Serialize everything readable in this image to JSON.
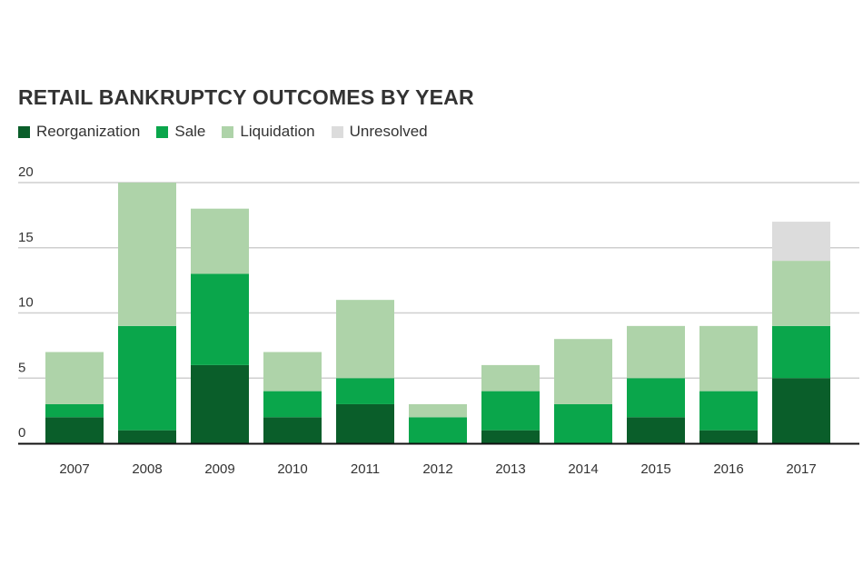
{
  "chart_data": {
    "type": "bar",
    "stacked": true,
    "title": "RETAIL BANKRUPTCY OUTCOMES BY YEAR",
    "categories": [
      "2007",
      "2008",
      "2009",
      "2010",
      "2011",
      "2012",
      "2013",
      "2014",
      "2015",
      "2016",
      "2017"
    ],
    "series": [
      {
        "name": "Reorganization",
        "color": "#0a5e2a",
        "values": [
          2,
          1,
          6,
          2,
          3,
          0,
          1,
          0,
          2,
          1,
          5
        ]
      },
      {
        "name": "Sale",
        "color": "#0aa64b",
        "values": [
          1,
          8,
          7,
          2,
          2,
          2,
          3,
          3,
          3,
          3,
          4
        ]
      },
      {
        "name": "Liquidation",
        "color": "#aed3a9",
        "values": [
          4,
          11,
          5,
          3,
          6,
          1,
          2,
          5,
          4,
          5,
          5
        ]
      },
      {
        "name": "Unresolved",
        "color": "#dcdcdc",
        "values": [
          0,
          0,
          0,
          0,
          0,
          0,
          0,
          0,
          0,
          0,
          3
        ]
      }
    ],
    "yticks": [
      0,
      5,
      10,
      15,
      20
    ],
    "ylim": [
      0,
      20
    ],
    "grid": true,
    "legend_position": "top-left"
  }
}
